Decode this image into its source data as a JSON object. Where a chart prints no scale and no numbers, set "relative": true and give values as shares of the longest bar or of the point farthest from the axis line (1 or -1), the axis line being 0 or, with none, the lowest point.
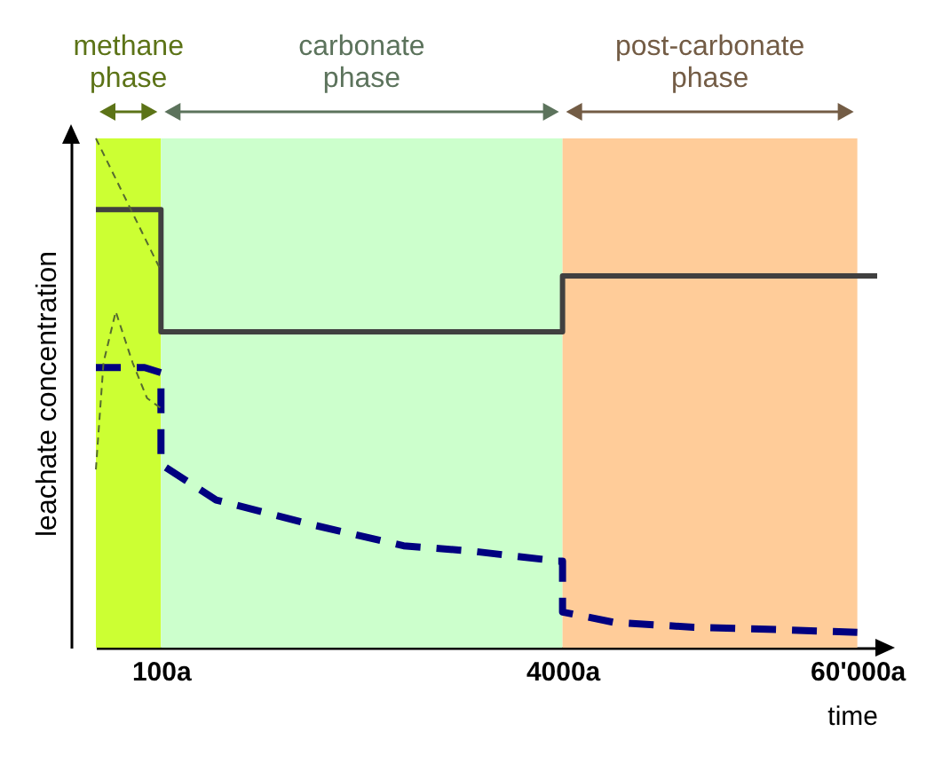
{
  "chart_data": {
    "type": "line",
    "relative": true,
    "xlabel": "time",
    "ylabel": "leachate concentration",
    "log": "x",
    "xlim": [
      55,
      72000
    ],
    "xticks": [
      {
        "value": 100,
        "label": "100a"
      },
      {
        "value": 4000,
        "label": "4000a"
      },
      {
        "value": 60000,
        "label": "60'000a"
      }
    ],
    "grid": false,
    "marker": "none",
    "bands": [
      {
        "axis": "x",
        "from": 55,
        "to": 100,
        "label": "methane phase",
        "color": "#ccff33"
      },
      {
        "axis": "x",
        "from": 100,
        "to": 4000,
        "label": "carbonate phase",
        "color": "#ccffcc"
      },
      {
        "axis": "x",
        "from": 4000,
        "to": 60000,
        "label": "post-carbonate phase",
        "color": "#ffcc99"
      }
    ],
    "series": [
      {
        "color": "#404040",
        "line_style": "solid",
        "x": [
          55,
          100,
          100,
          4000,
          4000,
          72000
        ],
        "values": [
          0.86,
          0.86,
          0.62,
          0.62,
          0.73,
          0.73
        ]
      },
      {
        "color": "#000080",
        "line_style": "dashed",
        "x": [
          55,
          86,
          100,
          100,
          166,
          413,
          929,
          1706,
          3837,
          4000,
          4000,
          6370,
          13300,
          31300,
          60000
        ],
        "values": [
          0.55,
          0.55,
          0.54,
          0.36,
          0.29,
          0.24,
          0.2,
          0.19,
          0.17,
          0.17,
          0.07,
          0.05,
          0.04,
          0.035,
          0.03
        ]
      },
      {
        "color": "#556b2f",
        "line_style": "dashed",
        "x": [
          55,
          100
        ],
        "values": [
          1,
          0.74
        ]
      },
      {
        "color": "#556b2f",
        "line_style": "dashed",
        "x": [
          55,
          59,
          66,
          77,
          88,
          100
        ],
        "values": [
          0.35,
          0.56,
          0.66,
          0.56,
          0.49,
          0.47
        ]
      }
    ]
  }
}
